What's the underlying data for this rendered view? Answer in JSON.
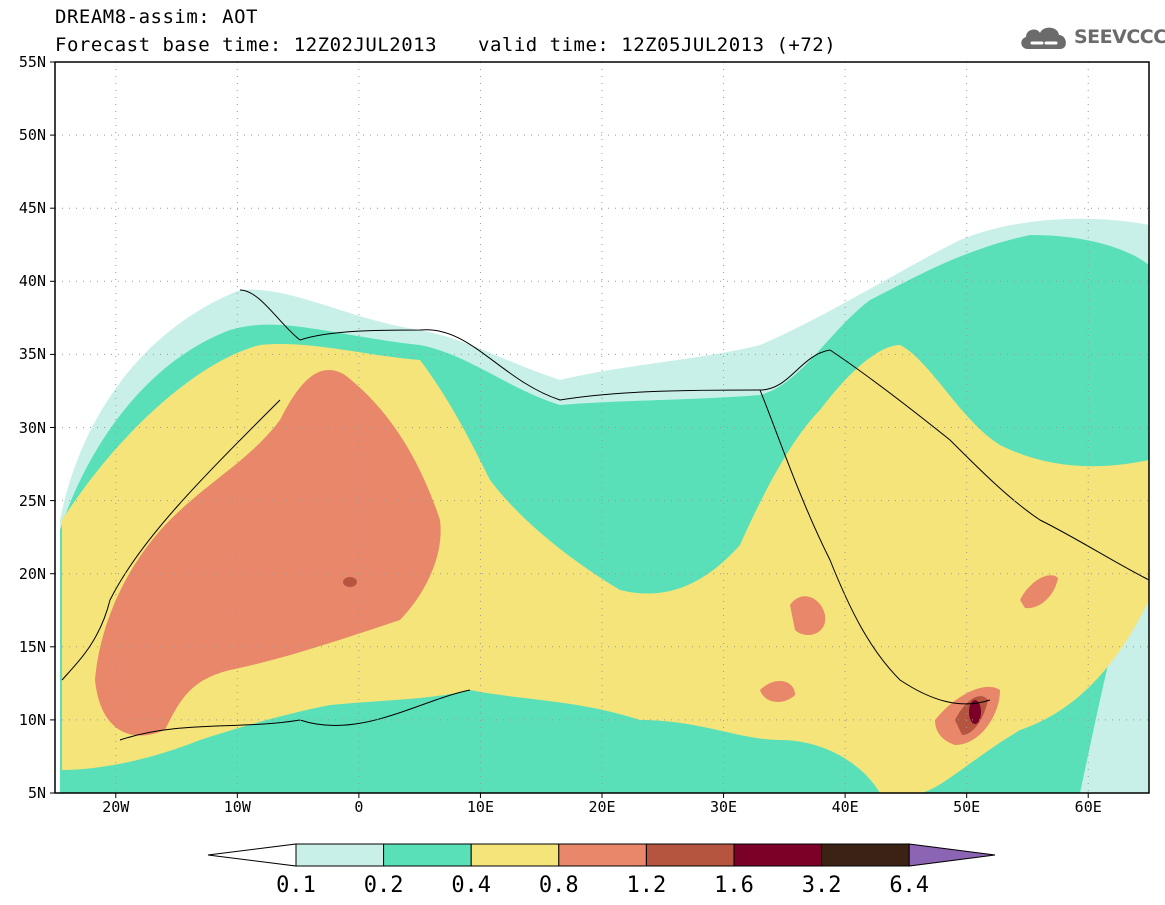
{
  "title": {
    "line1": "DREAM8-assim: AOT",
    "line2": "Forecast base time: 12Z02JUL2013",
    "valid": "valid time: 12Z05JUL2013 (+72)"
  },
  "logo": {
    "text": "SEEVCCC",
    "icon": "cloud-icon",
    "color": "#6b6b6b"
  },
  "map": {
    "lat_range": [
      5,
      55
    ],
    "lon_range": [
      -25,
      65
    ],
    "lat_ticks": [
      "55N",
      "50N",
      "45N",
      "40N",
      "35N",
      "30N",
      "25N",
      "20N",
      "15N",
      "10N",
      "5N"
    ],
    "lon_ticks": [
      "20W",
      "10W",
      "0",
      "10E",
      "20E",
      "30E",
      "40E",
      "50E",
      "60E"
    ],
    "grid": "dotted"
  },
  "colorbar": {
    "labels": [
      "0.1",
      "0.2",
      "0.4",
      "0.8",
      "1.2",
      "1.6",
      "3.2",
      "6.4"
    ],
    "colors": [
      "#ffffff",
      "#c8f0e8",
      "#5ae0b8",
      "#f5e47a",
      "#e8876a",
      "#b5553f",
      "#7a0028",
      "#3c2214",
      "#8c64b4"
    ]
  }
}
